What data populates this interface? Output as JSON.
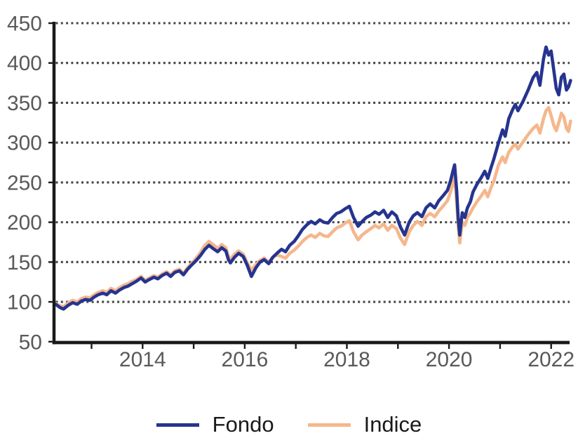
{
  "chart_data": {
    "type": "line",
    "title": "",
    "xlabel": "",
    "ylabel": "",
    "ylim": [
      50,
      450
    ],
    "xlim": [
      2012.3,
      2022.4
    ],
    "grid": "dotted-horizontal",
    "legend_position": "bottom",
    "y_axis": {
      "ticks": [
        450,
        400,
        350,
        300,
        250,
        200,
        150,
        100,
        50
      ],
      "gridline_values": [
        450,
        400,
        350,
        300,
        250,
        200,
        150,
        100
      ]
    },
    "x_axis": {
      "tick_years": [
        2013,
        2014,
        2015,
        2016,
        2017,
        2018,
        2019,
        2020,
        2021,
        2022
      ],
      "label_years": [
        2014,
        2016,
        2018,
        2020,
        2022
      ]
    },
    "colors": {
      "axis": "#1a1a1a",
      "grid_dots": "#464646",
      "tick_label": "#595959",
      "legend_text": "#1a1a1a"
    },
    "series": [
      {
        "name": "Fondo",
        "color": "#26348f",
        "points": [
          [
            2012.3,
            97
          ],
          [
            2012.38,
            93
          ],
          [
            2012.45,
            91
          ],
          [
            2012.55,
            96
          ],
          [
            2012.63,
            99
          ],
          [
            2012.72,
            97
          ],
          [
            2012.8,
            101
          ],
          [
            2012.88,
            103
          ],
          [
            2012.97,
            102
          ],
          [
            2013.05,
            106
          ],
          [
            2013.13,
            109
          ],
          [
            2013.22,
            111
          ],
          [
            2013.3,
            109
          ],
          [
            2013.38,
            114
          ],
          [
            2013.47,
            111
          ],
          [
            2013.55,
            115
          ],
          [
            2013.63,
            118
          ],
          [
            2013.72,
            120
          ],
          [
            2013.8,
            123
          ],
          [
            2013.88,
            126
          ],
          [
            2013.97,
            130
          ],
          [
            2014.05,
            125
          ],
          [
            2014.13,
            128
          ],
          [
            2014.22,
            131
          ],
          [
            2014.3,
            129
          ],
          [
            2014.38,
            133
          ],
          [
            2014.47,
            136
          ],
          [
            2014.55,
            132
          ],
          [
            2014.63,
            137
          ],
          [
            2014.72,
            139
          ],
          [
            2014.8,
            134
          ],
          [
            2014.88,
            141
          ],
          [
            2014.97,
            147
          ],
          [
            2015.05,
            152
          ],
          [
            2015.13,
            158
          ],
          [
            2015.22,
            166
          ],
          [
            2015.3,
            171
          ],
          [
            2015.38,
            167
          ],
          [
            2015.47,
            163
          ],
          [
            2015.55,
            168
          ],
          [
            2015.63,
            164
          ],
          [
            2015.68,
            153
          ],
          [
            2015.72,
            149
          ],
          [
            2015.8,
            156
          ],
          [
            2015.88,
            161
          ],
          [
            2015.97,
            157
          ],
          [
            2016.05,
            146
          ],
          [
            2016.13,
            132
          ],
          [
            2016.22,
            143
          ],
          [
            2016.3,
            150
          ],
          [
            2016.38,
            153
          ],
          [
            2016.47,
            148
          ],
          [
            2016.55,
            156
          ],
          [
            2016.63,
            161
          ],
          [
            2016.72,
            166
          ],
          [
            2016.8,
            163
          ],
          [
            2016.88,
            171
          ],
          [
            2016.97,
            176
          ],
          [
            2017.05,
            183
          ],
          [
            2017.13,
            191
          ],
          [
            2017.22,
            197
          ],
          [
            2017.3,
            201
          ],
          [
            2017.38,
            198
          ],
          [
            2017.47,
            203
          ],
          [
            2017.55,
            200
          ],
          [
            2017.63,
            199
          ],
          [
            2017.72,
            206
          ],
          [
            2017.8,
            211
          ],
          [
            2017.88,
            213
          ],
          [
            2017.97,
            217
          ],
          [
            2018.05,
            220
          ],
          [
            2018.13,
            206
          ],
          [
            2018.22,
            195
          ],
          [
            2018.3,
            201
          ],
          [
            2018.38,
            206
          ],
          [
            2018.47,
            209
          ],
          [
            2018.55,
            213
          ],
          [
            2018.63,
            210
          ],
          [
            2018.72,
            215
          ],
          [
            2018.8,
            206
          ],
          [
            2018.88,
            213
          ],
          [
            2018.97,
            208
          ],
          [
            2019.05,
            194
          ],
          [
            2019.13,
            184
          ],
          [
            2019.22,
            200
          ],
          [
            2019.3,
            208
          ],
          [
            2019.38,
            212
          ],
          [
            2019.47,
            207
          ],
          [
            2019.55,
            218
          ],
          [
            2019.63,
            223
          ],
          [
            2019.72,
            218
          ],
          [
            2019.8,
            227
          ],
          [
            2019.88,
            233
          ],
          [
            2019.97,
            240
          ],
          [
            2020.03,
            252
          ],
          [
            2020.08,
            265
          ],
          [
            2020.11,
            272
          ],
          [
            2020.15,
            240
          ],
          [
            2020.18,
            205
          ],
          [
            2020.21,
            184
          ],
          [
            2020.26,
            212
          ],
          [
            2020.31,
            206
          ],
          [
            2020.36,
            218
          ],
          [
            2020.42,
            226
          ],
          [
            2020.47,
            238
          ],
          [
            2020.55,
            248
          ],
          [
            2020.63,
            256
          ],
          [
            2020.7,
            264
          ],
          [
            2020.76,
            255
          ],
          [
            2020.82,
            268
          ],
          [
            2020.88,
            280
          ],
          [
            2020.97,
            300
          ],
          [
            2021.05,
            316
          ],
          [
            2021.1,
            308
          ],
          [
            2021.17,
            330
          ],
          [
            2021.25,
            342
          ],
          [
            2021.3,
            348
          ],
          [
            2021.35,
            340
          ],
          [
            2021.45,
            352
          ],
          [
            2021.55,
            366
          ],
          [
            2021.65,
            382
          ],
          [
            2021.72,
            388
          ],
          [
            2021.78,
            372
          ],
          [
            2021.85,
            405
          ],
          [
            2021.9,
            420
          ],
          [
            2021.95,
            410
          ],
          [
            2022.0,
            415
          ],
          [
            2022.05,
            392
          ],
          [
            2022.1,
            368
          ],
          [
            2022.15,
            360
          ],
          [
            2022.2,
            382
          ],
          [
            2022.25,
            386
          ],
          [
            2022.3,
            366
          ],
          [
            2022.34,
            370
          ],
          [
            2022.38,
            378
          ]
        ]
      },
      {
        "name": "Indice",
        "color": "#f5b78c",
        "points": [
          [
            2012.3,
            98
          ],
          [
            2012.38,
            95
          ],
          [
            2012.45,
            94
          ],
          [
            2012.55,
            99
          ],
          [
            2012.63,
            102
          ],
          [
            2012.72,
            100
          ],
          [
            2012.8,
            104
          ],
          [
            2012.88,
            106
          ],
          [
            2012.97,
            105
          ],
          [
            2013.05,
            109
          ],
          [
            2013.13,
            112
          ],
          [
            2013.22,
            114
          ],
          [
            2013.3,
            112
          ],
          [
            2013.38,
            117
          ],
          [
            2013.47,
            114
          ],
          [
            2013.55,
            118
          ],
          [
            2013.63,
            121
          ],
          [
            2013.72,
            123
          ],
          [
            2013.8,
            126
          ],
          [
            2013.88,
            128
          ],
          [
            2013.97,
            132
          ],
          [
            2014.05,
            127
          ],
          [
            2014.13,
            130
          ],
          [
            2014.22,
            133
          ],
          [
            2014.3,
            131
          ],
          [
            2014.38,
            135
          ],
          [
            2014.47,
            138
          ],
          [
            2014.55,
            134
          ],
          [
            2014.63,
            139
          ],
          [
            2014.72,
            141
          ],
          [
            2014.8,
            136
          ],
          [
            2014.88,
            143
          ],
          [
            2014.97,
            149
          ],
          [
            2015.05,
            155
          ],
          [
            2015.13,
            162
          ],
          [
            2015.22,
            171
          ],
          [
            2015.3,
            176
          ],
          [
            2015.38,
            172
          ],
          [
            2015.47,
            167
          ],
          [
            2015.55,
            172
          ],
          [
            2015.63,
            168
          ],
          [
            2015.68,
            157
          ],
          [
            2015.72,
            153
          ],
          [
            2015.8,
            160
          ],
          [
            2015.88,
            164
          ],
          [
            2015.97,
            160
          ],
          [
            2016.05,
            149
          ],
          [
            2016.13,
            140
          ],
          [
            2016.22,
            147
          ],
          [
            2016.3,
            152
          ],
          [
            2016.38,
            155
          ],
          [
            2016.47,
            150
          ],
          [
            2016.55,
            156
          ],
          [
            2016.63,
            159
          ],
          [
            2016.72,
            157
          ],
          [
            2016.8,
            155
          ],
          [
            2016.88,
            161
          ],
          [
            2016.97,
            165
          ],
          [
            2017.05,
            170
          ],
          [
            2017.13,
            176
          ],
          [
            2017.22,
            181
          ],
          [
            2017.3,
            184
          ],
          [
            2017.38,
            181
          ],
          [
            2017.47,
            186
          ],
          [
            2017.55,
            183
          ],
          [
            2017.63,
            182
          ],
          [
            2017.72,
            188
          ],
          [
            2017.8,
            193
          ],
          [
            2017.88,
            195
          ],
          [
            2017.97,
            199
          ],
          [
            2018.05,
            202
          ],
          [
            2018.13,
            188
          ],
          [
            2018.22,
            178
          ],
          [
            2018.3,
            184
          ],
          [
            2018.38,
            188
          ],
          [
            2018.47,
            192
          ],
          [
            2018.55,
            196
          ],
          [
            2018.63,
            193
          ],
          [
            2018.72,
            198
          ],
          [
            2018.8,
            190
          ],
          [
            2018.88,
            196
          ],
          [
            2018.97,
            192
          ],
          [
            2019.05,
            180
          ],
          [
            2019.13,
            172
          ],
          [
            2019.22,
            188
          ],
          [
            2019.3,
            196
          ],
          [
            2019.38,
            201
          ],
          [
            2019.47,
            196
          ],
          [
            2019.55,
            207
          ],
          [
            2019.63,
            211
          ],
          [
            2019.72,
            207
          ],
          [
            2019.8,
            214
          ],
          [
            2019.88,
            220
          ],
          [
            2019.97,
            227
          ],
          [
            2020.03,
            238
          ],
          [
            2020.08,
            250
          ],
          [
            2020.11,
            257
          ],
          [
            2020.15,
            226
          ],
          [
            2020.18,
            196
          ],
          [
            2020.21,
            174
          ],
          [
            2020.26,
            200
          ],
          [
            2020.31,
            196
          ],
          [
            2020.36,
            206
          ],
          [
            2020.42,
            212
          ],
          [
            2020.47,
            218
          ],
          [
            2020.55,
            226
          ],
          [
            2020.63,
            233
          ],
          [
            2020.7,
            240
          ],
          [
            2020.76,
            232
          ],
          [
            2020.82,
            243
          ],
          [
            2020.88,
            252
          ],
          [
            2020.97,
            272
          ],
          [
            2021.05,
            282
          ],
          [
            2021.1,
            275
          ],
          [
            2021.17,
            288
          ],
          [
            2021.25,
            295
          ],
          [
            2021.3,
            298
          ],
          [
            2021.35,
            292
          ],
          [
            2021.45,
            301
          ],
          [
            2021.55,
            310
          ],
          [
            2021.65,
            318
          ],
          [
            2021.72,
            322
          ],
          [
            2021.78,
            312
          ],
          [
            2021.85,
            330
          ],
          [
            2021.9,
            340
          ],
          [
            2021.95,
            344
          ],
          [
            2022.0,
            334
          ],
          [
            2022.05,
            322
          ],
          [
            2022.1,
            315
          ],
          [
            2022.15,
            325
          ],
          [
            2022.2,
            337
          ],
          [
            2022.25,
            332
          ],
          [
            2022.3,
            318
          ],
          [
            2022.34,
            314
          ],
          [
            2022.38,
            327
          ]
        ]
      }
    ]
  }
}
